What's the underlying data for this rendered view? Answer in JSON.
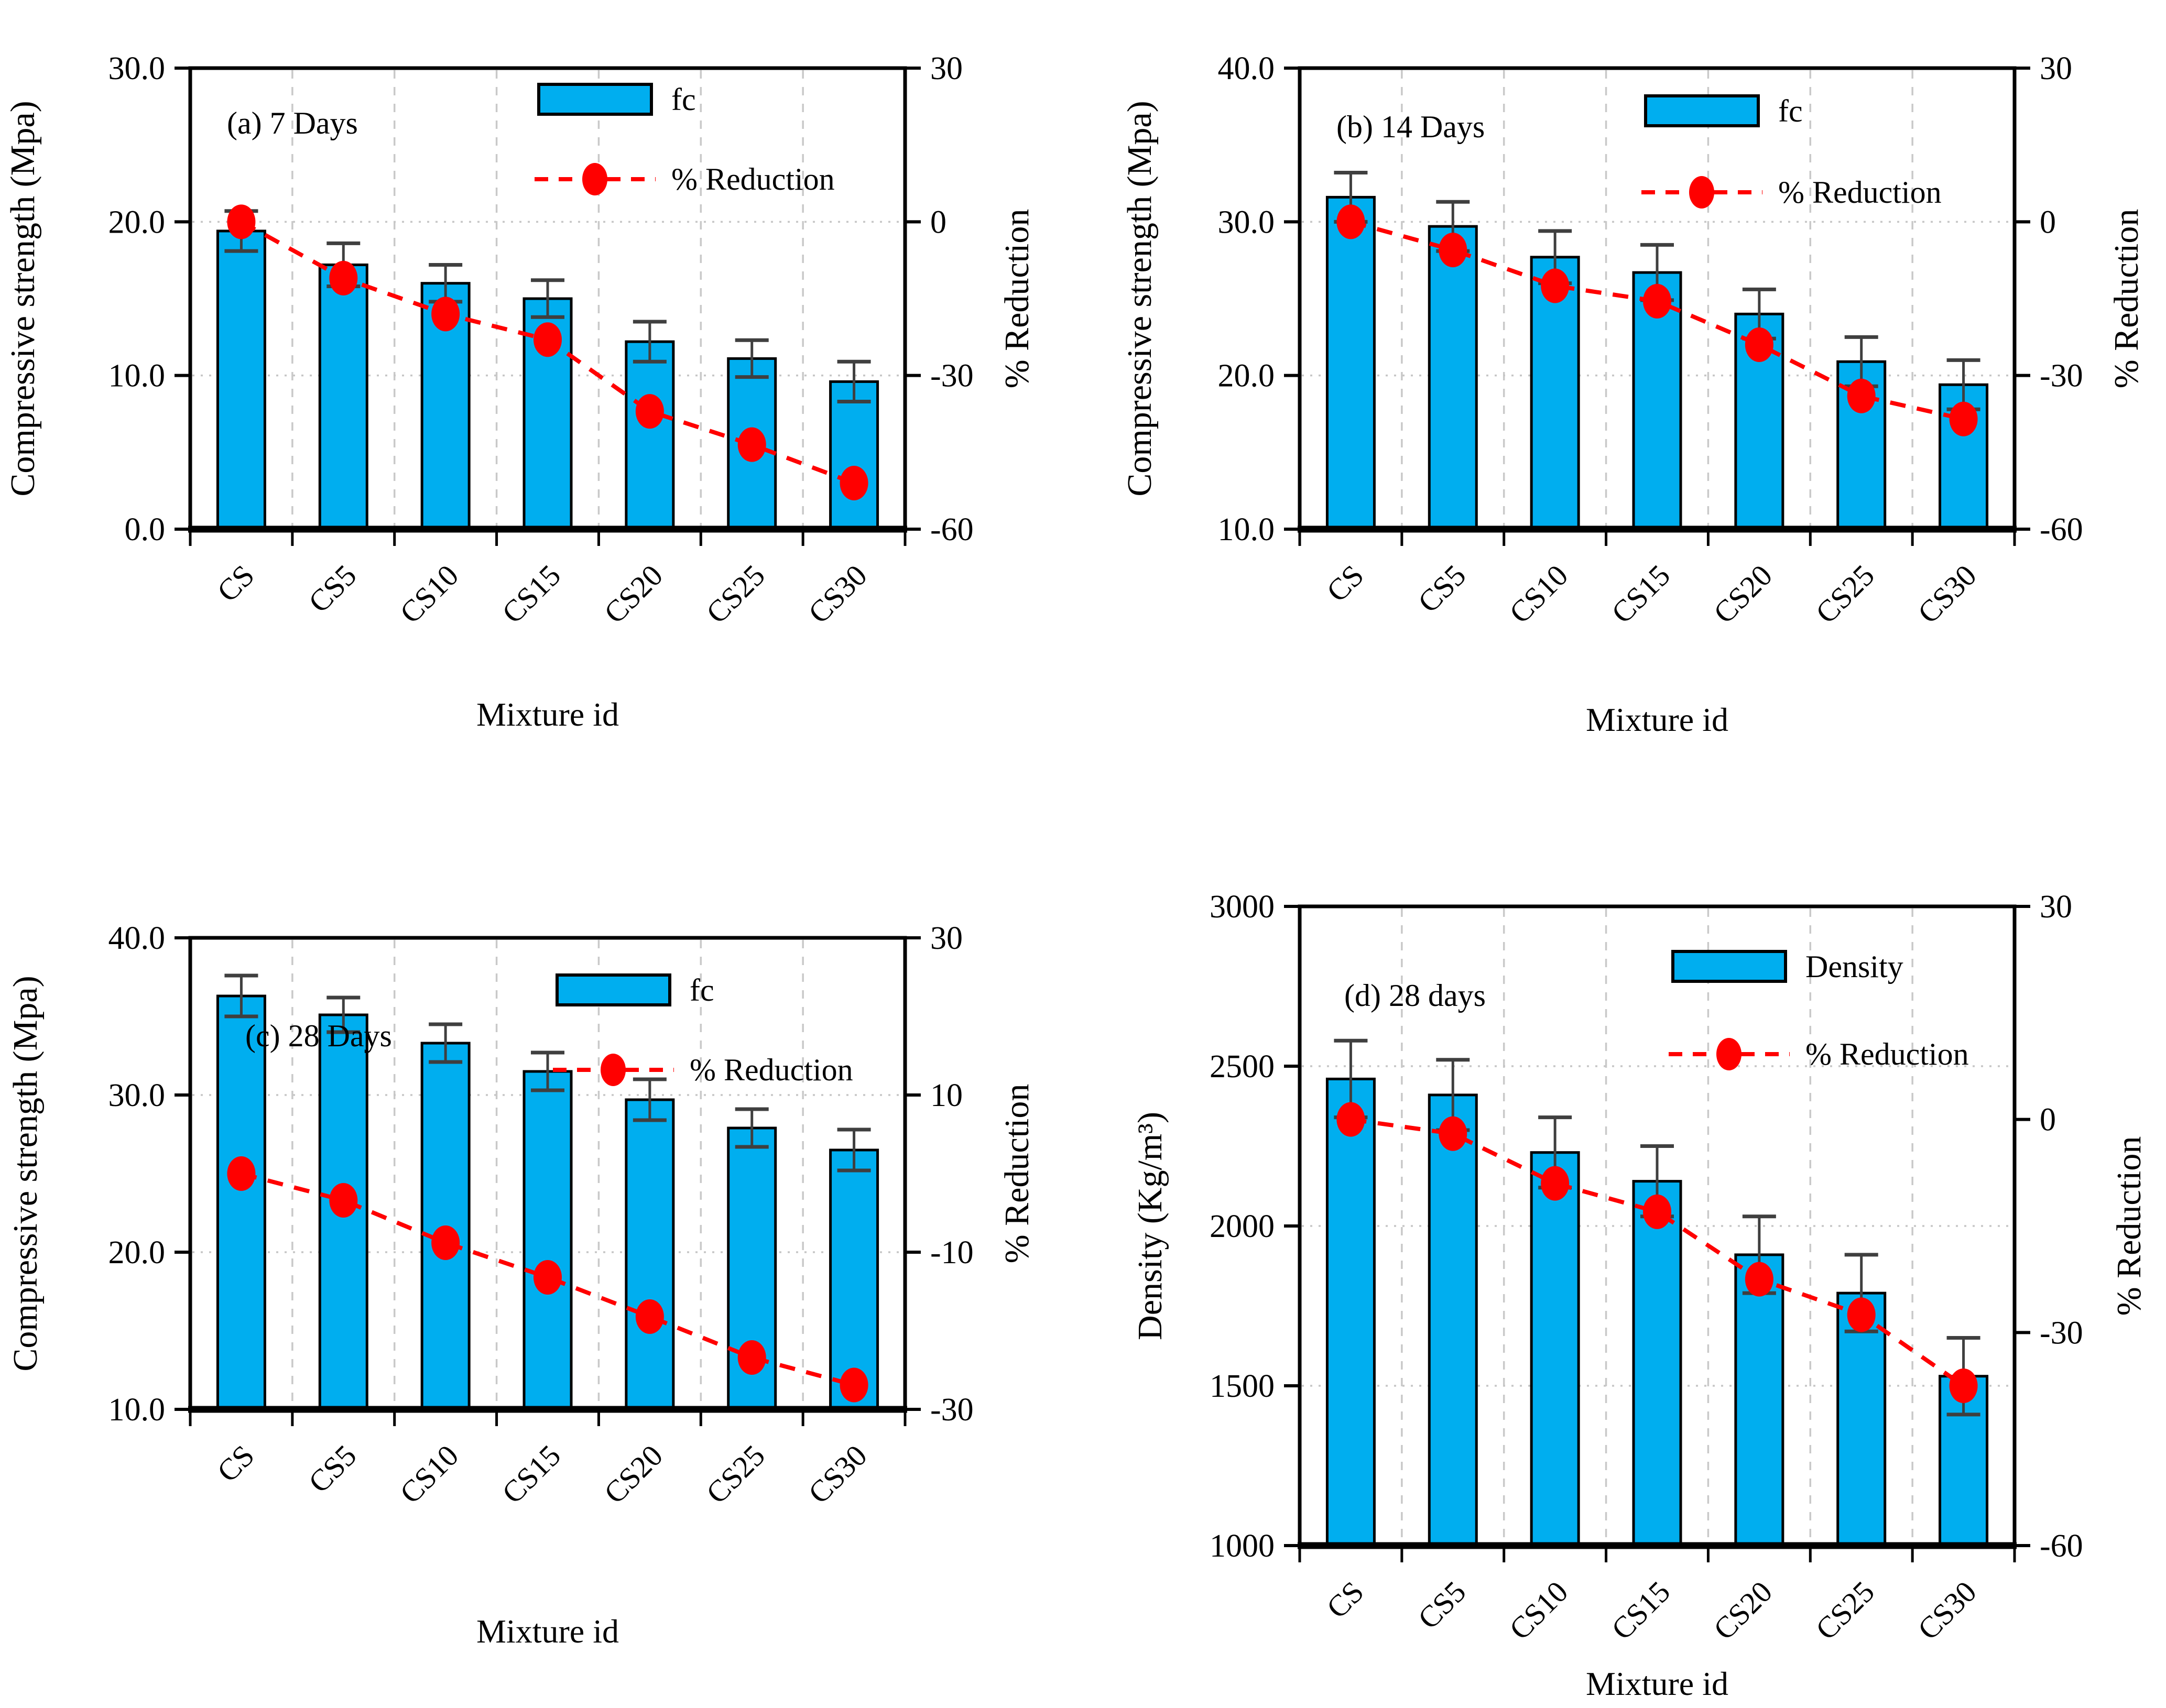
{
  "colors": {
    "bar_fill": "#00AEEF",
    "bar_stroke": "#000000",
    "error_bar": "#3F3F3F",
    "reduction_line": "#FF0000",
    "reduction_marker": "#FF0000",
    "grid_vertical": "#C9C9C9",
    "grid_horizontal": "#C6C6C6",
    "axis": "#000000",
    "background": "#FFFFFF"
  },
  "chart_data": [
    {
      "type": "bar+line",
      "panel_label": "(a) 7 Days",
      "categories": [
        "CS",
        "CS5",
        "CS10",
        "CS15",
        "CS20",
        "CS25",
        "CS30"
      ],
      "xlabel": "Mixture id",
      "ylabel_left": "Compressive strength (Mpa)",
      "ylabel_right": "% Reduction",
      "ylim_left": [
        0,
        30
      ],
      "ylim_right": [
        -60,
        30
      ],
      "yticks_left": [
        30,
        20,
        10,
        0
      ],
      "ytick_labels_left": [
        "30.0",
        "20.0",
        "10.0",
        "0.0"
      ],
      "yticks_right": [
        30,
        0,
        -30,
        -60
      ],
      "ytick_labels_right": [
        "30",
        "0",
        "-30",
        "-60"
      ],
      "legend": [
        {
          "name": "fc",
          "type": "bar"
        },
        {
          "name": "% Reduction",
          "type": "line"
        }
      ],
      "series": [
        {
          "name": "fc",
          "type": "bar",
          "axis": "left",
          "values": [
            19.4,
            17.2,
            16.0,
            15.0,
            12.2,
            11.1,
            9.6
          ],
          "errors": [
            1.3,
            1.4,
            1.2,
            1.2,
            1.3,
            1.2,
            1.3
          ]
        },
        {
          "name": "% Reduction",
          "type": "line",
          "axis": "right",
          "values": [
            0,
            -11,
            -18,
            -23,
            -37,
            -43.5,
            -51
          ]
        }
      ],
      "grid": "dotted horizontal at major left ticks, dashed vertical at category boundaries",
      "legend_position": "top-center-right inside"
    },
    {
      "type": "bar+line",
      "panel_label": "(b) 14 Days",
      "categories": [
        "CS",
        "CS5",
        "CS10",
        "CS15",
        "CS20",
        "CS25",
        "CS30"
      ],
      "xlabel": "Mixture id",
      "ylabel_left": "Compressive strength (Mpa)",
      "ylabel_right": "% Reduction",
      "ylim_left": [
        10,
        40
      ],
      "ylim_right": [
        -60,
        30
      ],
      "yticks_left": [
        40,
        30,
        20,
        10
      ],
      "ytick_labels_left": [
        "40.0",
        "30.0",
        "20.0",
        "10.0"
      ],
      "yticks_right": [
        30,
        0,
        -30,
        -60
      ],
      "ytick_labels_right": [
        "30",
        "0",
        "-30",
        "-60"
      ],
      "legend": [
        {
          "name": "fc",
          "type": "bar"
        },
        {
          "name": "% Reduction",
          "type": "line"
        }
      ],
      "series": [
        {
          "name": "fc",
          "type": "bar",
          "axis": "left",
          "values": [
            31.6,
            29.7,
            27.7,
            26.7,
            24.0,
            20.9,
            19.4
          ],
          "errors": [
            1.6,
            1.6,
            1.7,
            1.8,
            1.6,
            1.6,
            1.6
          ]
        },
        {
          "name": "% Reduction",
          "type": "line",
          "axis": "right",
          "values": [
            0,
            -5.5,
            -12.5,
            -15.5,
            -24,
            -34,
            -38.5
          ]
        }
      ],
      "grid": "dotted horizontal at major left ticks, dashed vertical at category boundaries",
      "legend_position": "top-center-right inside"
    },
    {
      "type": "bar+line",
      "panel_label": "(c) 28 Days",
      "categories": [
        "CS",
        "CS5",
        "CS10",
        "CS15",
        "CS20",
        "CS25",
        "CS30"
      ],
      "xlabel": "Mixture id",
      "ylabel_left": "Compressive strength (Mpa)",
      "ylabel_right": "% Reduction",
      "ylim_left": [
        10,
        40
      ],
      "ylim_right": [
        -30,
        30
      ],
      "yticks_left": [
        40,
        30,
        20,
        10
      ],
      "ytick_labels_left": [
        "40.0",
        "30.0",
        "20.0",
        "10.0"
      ],
      "yticks_right": [
        30,
        10,
        -10,
        -30
      ],
      "ytick_labels_right": [
        "30",
        "10",
        "-10",
        "-30"
      ],
      "legend": [
        {
          "name": "fc",
          "type": "bar"
        },
        {
          "name": "% Reduction",
          "type": "line"
        }
      ],
      "series": [
        {
          "name": "fc",
          "type": "bar",
          "axis": "left",
          "values": [
            36.3,
            35.1,
            33.3,
            31.5,
            29.7,
            27.9,
            26.5
          ],
          "errors": [
            1.3,
            1.1,
            1.2,
            1.2,
            1.3,
            1.2,
            1.3
          ]
        },
        {
          "name": "% Reduction",
          "type": "line",
          "axis": "right",
          "values": [
            0,
            -3.4,
            -8.8,
            -13.2,
            -18.2,
            -23.4,
            -26.9
          ]
        }
      ],
      "grid": "dotted horizontal at major left ticks, dashed vertical at category boundaries",
      "legend_position": "top-center-right inside"
    },
    {
      "type": "bar+line",
      "panel_label": "(d) 28 days",
      "categories": [
        "CS",
        "CS5",
        "CS10",
        "CS15",
        "CS20",
        "CS25",
        "CS30"
      ],
      "xlabel": "Mixture id",
      "ylabel_left": "Density (Kg/m³)",
      "ylabel_right": "% Reduction",
      "ylim_left": [
        1000,
        3000
      ],
      "ylim_right": [
        -60,
        30
      ],
      "yticks_left": [
        3000,
        2500,
        2000,
        1500,
        1000
      ],
      "ytick_labels_left": [
        "3000",
        "2500",
        "2000",
        "1500",
        "1000"
      ],
      "yticks_right": [
        30,
        0,
        -30,
        -60
      ],
      "ytick_labels_right": [
        "30",
        "0",
        "-30",
        "-60"
      ],
      "legend": [
        {
          "name": "Density",
          "type": "bar"
        },
        {
          "name": "% Reduction",
          "type": "line"
        }
      ],
      "series": [
        {
          "name": "Density",
          "type": "bar",
          "axis": "left",
          "values": [
            2460,
            2410,
            2230,
            2140,
            1910,
            1790,
            1530
          ],
          "errors": [
            120,
            110,
            110,
            110,
            120,
            120,
            120
          ]
        },
        {
          "name": "% Reduction",
          "type": "line",
          "axis": "right",
          "values": [
            0,
            -2,
            -9,
            -13,
            -22.5,
            -27.5,
            -37.5
          ]
        }
      ],
      "grid": "dotted horizontal at major left ticks, dashed vertical at category boundaries",
      "legend_position": "top-center-right inside"
    }
  ]
}
